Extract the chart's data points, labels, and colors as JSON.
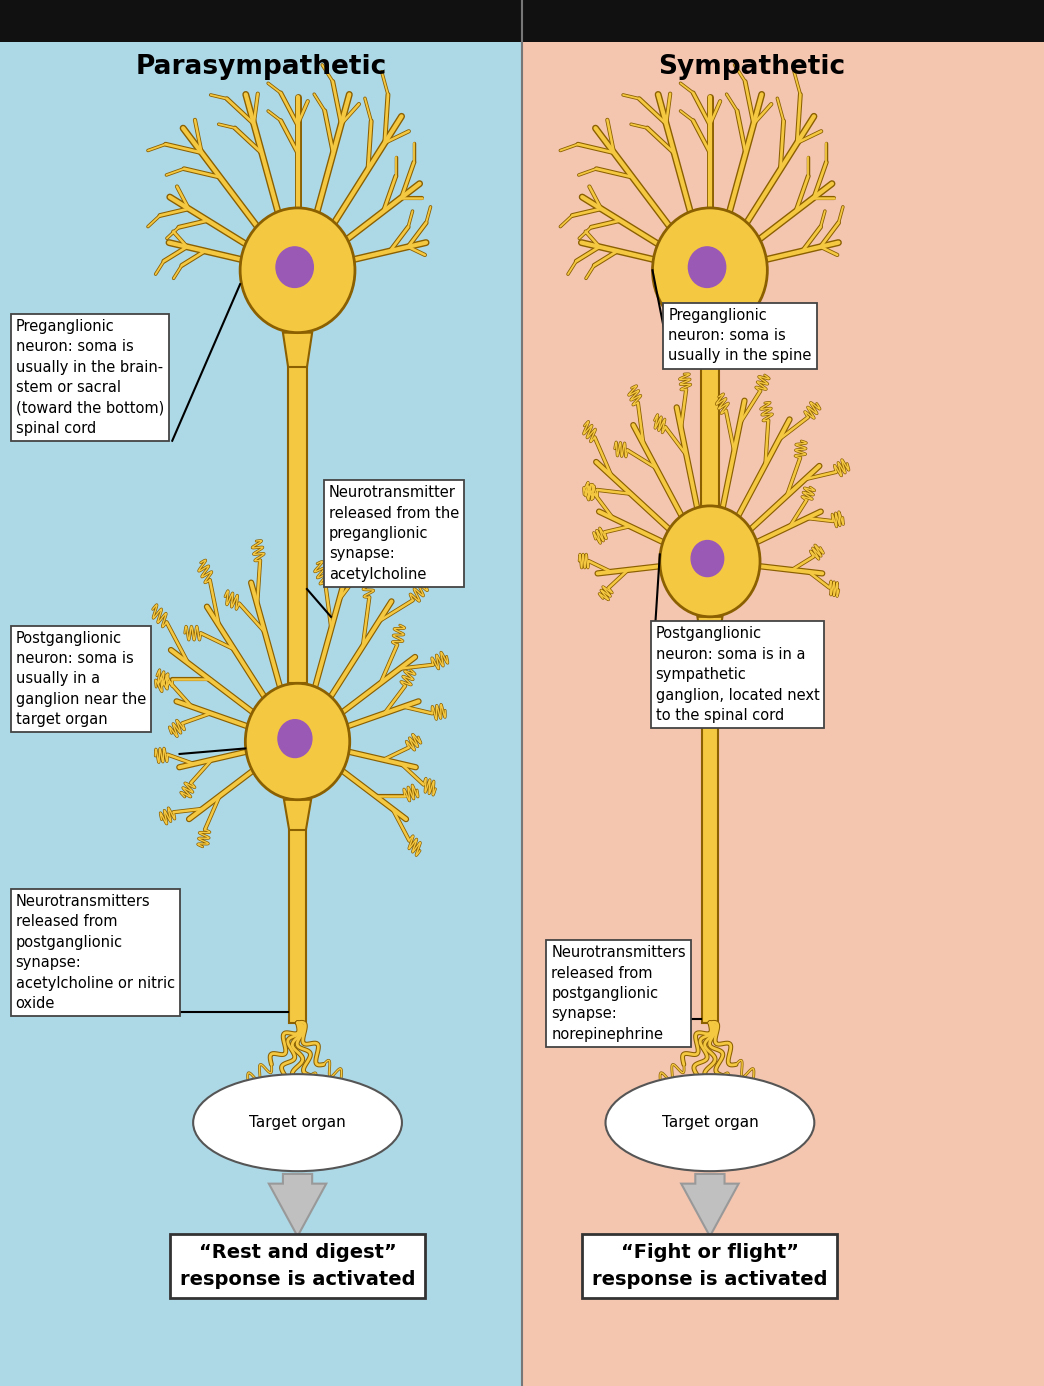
{
  "bg_left": "#ADD8E6",
  "bg_right": "#F4C5AF",
  "divider_color": "#777777",
  "header_bar_color": "#111111",
  "neuron_fill": "#F5C842",
  "neuron_edge": "#8B6000",
  "soma_color": "#9B59B6",
  "axon_color": "#F5C842",
  "axon_edge": "#8B6000",
  "title_left": "Parasympathetic",
  "title_right": "Sympathetic",
  "label_para_pre_bold": "Preganglionic\nneuron",
  "label_para_pre_normal": ": soma is\nusually in the brain-\nstem or sacral\n(toward the bottom)\nspinal cord",
  "label_para_post_bold": "Postganglionic\nneuron",
  "label_para_post_normal": ": soma is\nusually in a\nganglion near the\ntarget organ",
  "label_para_nt1": "Neurotransmitter\nreleased from the\npreganglionic\nsynapse:\nacetylcholine",
  "label_para_nt2": "Neurotransmitters\nreleased from\npostganglionic\nsynapse:\nacetylcholine or nitric\noxide",
  "label_symp_pre_bold": "Preganglionic\nneuron",
  "label_symp_pre_normal": ": soma is\nusually in the spine",
  "label_symp_post_bold": "Postganglionic\nneuron",
  "label_symp_post_normal": ": soma is in a\nsympathetic\nganglion, located next\nto the spinal cord",
  "label_symp_nt2": "Neurotransmitters\nreleased from\npostganglionic\nsynapse:\nnorepinephrine",
  "target_organ_text": "Target organ",
  "rest_digest": "“Rest and digest”\nresponse is activated",
  "fight_flight": "“Fight or flight”\nresponse is activated",
  "arrow_color": "#C0C0C0",
  "arrow_edge": "#999999",
  "box_edge_color": "#444444",
  "figsize": [
    10.44,
    13.86
  ],
  "dpi": 100
}
